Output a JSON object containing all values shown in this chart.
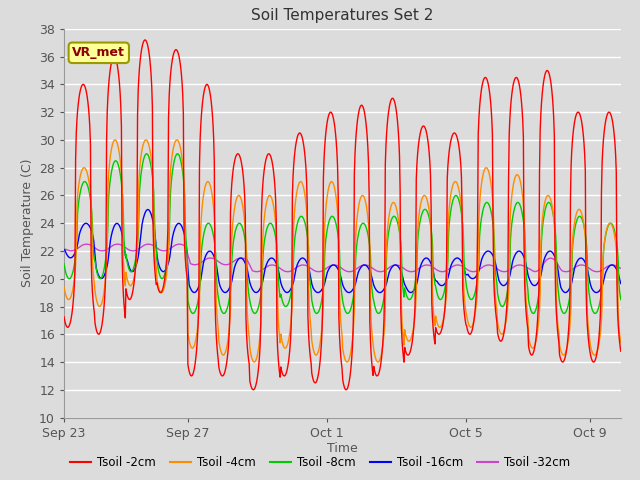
{
  "title": "Soil Temperatures Set 2",
  "xlabel": "Time",
  "ylabel": "Soil Temperature (C)",
  "ylim": [
    10,
    38
  ],
  "yticks": [
    10,
    12,
    14,
    16,
    18,
    20,
    22,
    24,
    26,
    28,
    30,
    32,
    34,
    36,
    38
  ],
  "annotation_text": "VR_met",
  "annotation_color": "#8B0000",
  "annotation_bg": "#FFFF99",
  "series_colors": [
    "#FF0000",
    "#FF8C00",
    "#00CC00",
    "#0000FF",
    "#CC44CC"
  ],
  "series_labels": [
    "Tsoil -2cm",
    "Tsoil -4cm",
    "Tsoil -8cm",
    "Tsoil -16cm",
    "Tsoil -32cm"
  ],
  "bg_color": "#DCDCDC",
  "grid_color": "#FFFFFF",
  "tick_labels_x": [
    "Sep 23",
    "Sep 27",
    "Oct 1",
    "Oct 5",
    "Oct 9"
  ],
  "tick_positions_x": [
    0,
    4,
    8.5,
    13,
    17
  ]
}
